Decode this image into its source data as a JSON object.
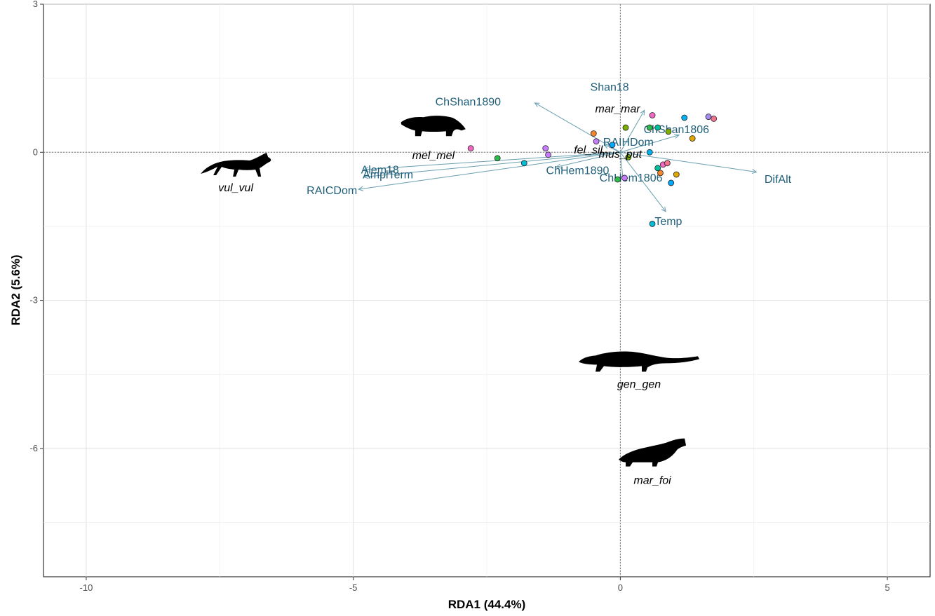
{
  "chart_data": {
    "type": "scatter",
    "title": "",
    "xlabel": "RDA1 (44.4%)",
    "ylabel": "RDA2 (5.6%)",
    "xlim": [
      -10.8,
      5.8
    ],
    "ylim": [
      -8.6,
      3.0
    ],
    "x_ticks": [
      -10,
      -5,
      0,
      5
    ],
    "x_tick_labels": [
      "-10",
      "-5",
      "0",
      "5"
    ],
    "y_ticks": [
      3,
      0,
      -3,
      -6
    ],
    "y_tick_labels": [
      "3",
      "0",
      "-3",
      "-6"
    ],
    "grid": true,
    "reference_lines": {
      "x": 0,
      "y": 0,
      "style": "dotted"
    },
    "vectors": [
      {
        "label": "Shan18",
        "x": 0.45,
        "y": 0.85,
        "label_x": -0.2,
        "label_y": 1.32
      },
      {
        "label": "ChShan1890",
        "x": -1.6,
        "y": 1.0,
        "label_x": -2.85,
        "label_y": 1.02
      },
      {
        "label": "ChShan1806",
        "x": 1.1,
        "y": 0.35,
        "label_x": 1.05,
        "label_y": 0.46
      },
      {
        "label": "RAIHDom",
        "x": -0.3,
        "y": 0.15,
        "label_x": 0.15,
        "label_y": 0.2
      },
      {
        "label": "Alem18",
        "x": -4.8,
        "y": -0.35,
        "label_x": -4.5,
        "label_y": -0.36
      },
      {
        "label": "AmplTerm",
        "x": -4.8,
        "y": -0.5,
        "label_x": -4.35,
        "label_y": -0.46
      },
      {
        "label": "RAICDom",
        "x": -4.9,
        "y": -0.75,
        "label_x": -5.4,
        "label_y": -0.78
      },
      {
        "label": "ChHem1890",
        "x": -1.2,
        "y": -0.3,
        "label_x": -0.8,
        "label_y": -0.37
      },
      {
        "label": "ChHem1806",
        "x": 0.05,
        "y": -0.55,
        "label_x": 0.2,
        "label_y": -0.52
      },
      {
        "label": "DifAlt",
        "x": 2.55,
        "y": -0.4,
        "label_x": 2.95,
        "label_y": -0.55
      },
      {
        "label": "Temp",
        "x": 0.85,
        "y": -1.2,
        "label_x": 0.9,
        "label_y": -1.4
      }
    ],
    "species": [
      {
        "label": "mar_mar",
        "x": -0.05,
        "y": 0.88,
        "silhouette": false
      },
      {
        "label": "fel_sil",
        "x": -0.6,
        "y": 0.05,
        "silhouette": false
      },
      {
        "label": "mus_put",
        "x": 0.0,
        "y": -0.04,
        "silhouette": false
      },
      {
        "label": "mel_mel",
        "x": -3.5,
        "y": -0.07,
        "silhouette": "badger-silhouette"
      },
      {
        "label": "vul_vul",
        "x": -7.2,
        "y": -0.72,
        "silhouette": "fox-silhouette"
      },
      {
        "label": "gen_gen",
        "x": 0.35,
        "y": -4.7,
        "silhouette": "genet-silhouette"
      },
      {
        "label": "mar_foi",
        "x": 0.6,
        "y": -6.65,
        "silhouette": "marten-silhouette"
      }
    ],
    "sites": [
      {
        "x": 0.6,
        "y": 0.75,
        "color": "#f067c4"
      },
      {
        "x": 1.2,
        "y": 0.7,
        "color": "#00b2f1"
      },
      {
        "x": 1.65,
        "y": 0.72,
        "color": "#a78af4"
      },
      {
        "x": 1.75,
        "y": 0.68,
        "color": "#f2738f"
      },
      {
        "x": 0.55,
        "y": 0.5,
        "color": "#2dbb4c"
      },
      {
        "x": 0.7,
        "y": 0.5,
        "color": "#00bf9c"
      },
      {
        "x": 0.9,
        "y": 0.42,
        "color": "#7cae00"
      },
      {
        "x": 1.35,
        "y": 0.28,
        "color": "#e3a600"
      },
      {
        "x": 0.1,
        "y": 0.5,
        "color": "#7cae00"
      },
      {
        "x": -0.5,
        "y": 0.38,
        "color": "#f5862c"
      },
      {
        "x": -0.45,
        "y": 0.22,
        "color": "#c77cff"
      },
      {
        "x": -0.15,
        "y": 0.15,
        "color": "#00a9ff"
      },
      {
        "x": 0.55,
        "y": 0.0,
        "color": "#00b2f1"
      },
      {
        "x": -2.8,
        "y": 0.08,
        "color": "#f067c4"
      },
      {
        "x": -1.4,
        "y": 0.08,
        "color": "#c77cff"
      },
      {
        "x": -1.35,
        "y": -0.05,
        "color": "#c77cff"
      },
      {
        "x": -2.3,
        "y": -0.12,
        "color": "#2dbb4c"
      },
      {
        "x": -1.8,
        "y": -0.22,
        "color": "#00bcd8"
      },
      {
        "x": 0.15,
        "y": -0.1,
        "color": "#7cae00"
      },
      {
        "x": -0.05,
        "y": -0.55,
        "color": "#2dbb4c"
      },
      {
        "x": 0.08,
        "y": -0.52,
        "color": "#c77cff"
      },
      {
        "x": 0.8,
        "y": -0.25,
        "color": "#f067c4"
      },
      {
        "x": 0.88,
        "y": -0.22,
        "color": "#f2738f"
      },
      {
        "x": 0.7,
        "y": -0.32,
        "color": "#00bf9c"
      },
      {
        "x": 0.75,
        "y": -0.42,
        "color": "#f5862c"
      },
      {
        "x": 1.05,
        "y": -0.45,
        "color": "#e3a600"
      },
      {
        "x": 0.95,
        "y": -0.62,
        "color": "#00a9ff"
      },
      {
        "x": 0.6,
        "y": -1.45,
        "color": "#00bcd8"
      }
    ]
  }
}
